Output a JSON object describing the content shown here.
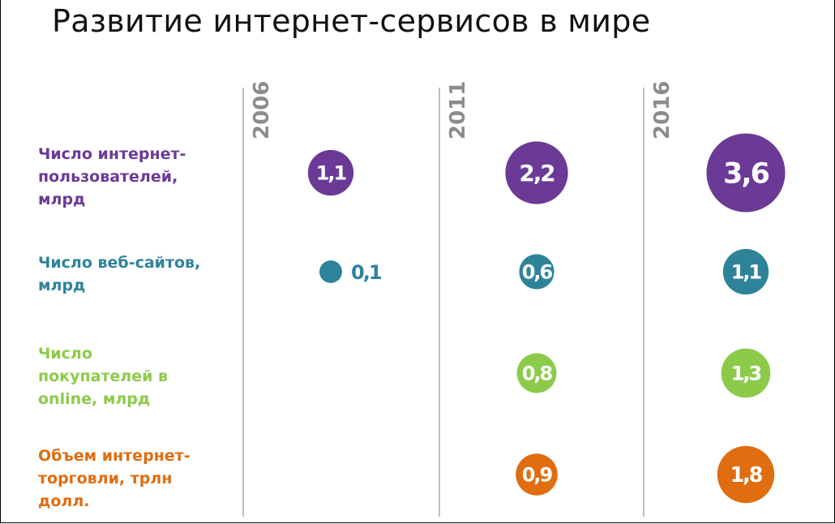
{
  "title": "Развитие интернет-сервисов в мире",
  "chart_data": {
    "type": "bubble",
    "title": "Развитие интернет-сервисов в мире",
    "years": [
      "2006",
      "2011",
      "2016"
    ],
    "series": [
      {
        "label": "Число интернет-пользователей, млрд",
        "label_lines": [
          "Число интернет-",
          "пользователей,",
          "млрд"
        ],
        "color": "#6b3a96",
        "values": [
          "1,1",
          "2,2",
          "3,6"
        ],
        "numeric": [
          1.1,
          2.2,
          3.6
        ]
      },
      {
        "label": "Число веб-сайтов, млрд",
        "label_lines": [
          "Число веб-сайтов,",
          "млрд"
        ],
        "color": "#2e839b",
        "values": [
          "0,1",
          "0,6",
          "1,1"
        ],
        "numeric": [
          0.1,
          0.6,
          1.1
        ]
      },
      {
        "label": "Число покупателей в online, млрд",
        "label_lines": [
          "Число",
          "покупателей в",
          "online, млрд"
        ],
        "color": "#8ccb4a",
        "values": [
          null,
          "0,8",
          "1,3"
        ],
        "numeric": [
          null,
          0.8,
          1.3
        ]
      },
      {
        "label": "Объем интернет-торговли, трлн долл.",
        "label_lines": [
          "Объем интернет-",
          "торговли, трлн",
          "долл."
        ],
        "color": "#e06d10",
        "values": [
          null,
          "0,9",
          "1,8"
        ],
        "numeric": [
          null,
          0.9,
          1.8
        ]
      }
    ]
  }
}
